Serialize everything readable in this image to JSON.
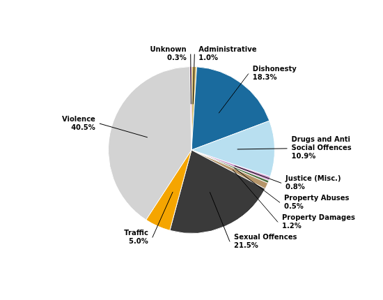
{
  "chart_data": {
    "type": "pie",
    "categories": [
      "Administrative",
      "Dishonesty",
      "Drugs and Anti\nSocial Offences",
      "Justice (Misc.)",
      "Property Abuses",
      "Property Damages",
      "Sexual Offences",
      "Traffic",
      "Violence",
      "Unknown"
    ],
    "values": [
      1.0,
      18.3,
      10.9,
      0.8,
      0.5,
      1.2,
      21.5,
      5.0,
      40.5,
      0.3
    ],
    "value_labels": [
      "1.0%",
      "18.3%",
      "10.9%",
      "0.8%",
      "0.5%",
      "1.2%",
      "21.5%",
      "5.0%",
      "40.5%",
      "0.3%"
    ],
    "colors": [
      "#d4b96a",
      "#1a6b9e",
      "#b8dff0",
      "#cc99cc",
      "#4a7040",
      "#b5956a",
      "#3a3a3a",
      "#f5a500",
      "#d3d3d3",
      "#cc44aa"
    ],
    "data_labels": true
  }
}
